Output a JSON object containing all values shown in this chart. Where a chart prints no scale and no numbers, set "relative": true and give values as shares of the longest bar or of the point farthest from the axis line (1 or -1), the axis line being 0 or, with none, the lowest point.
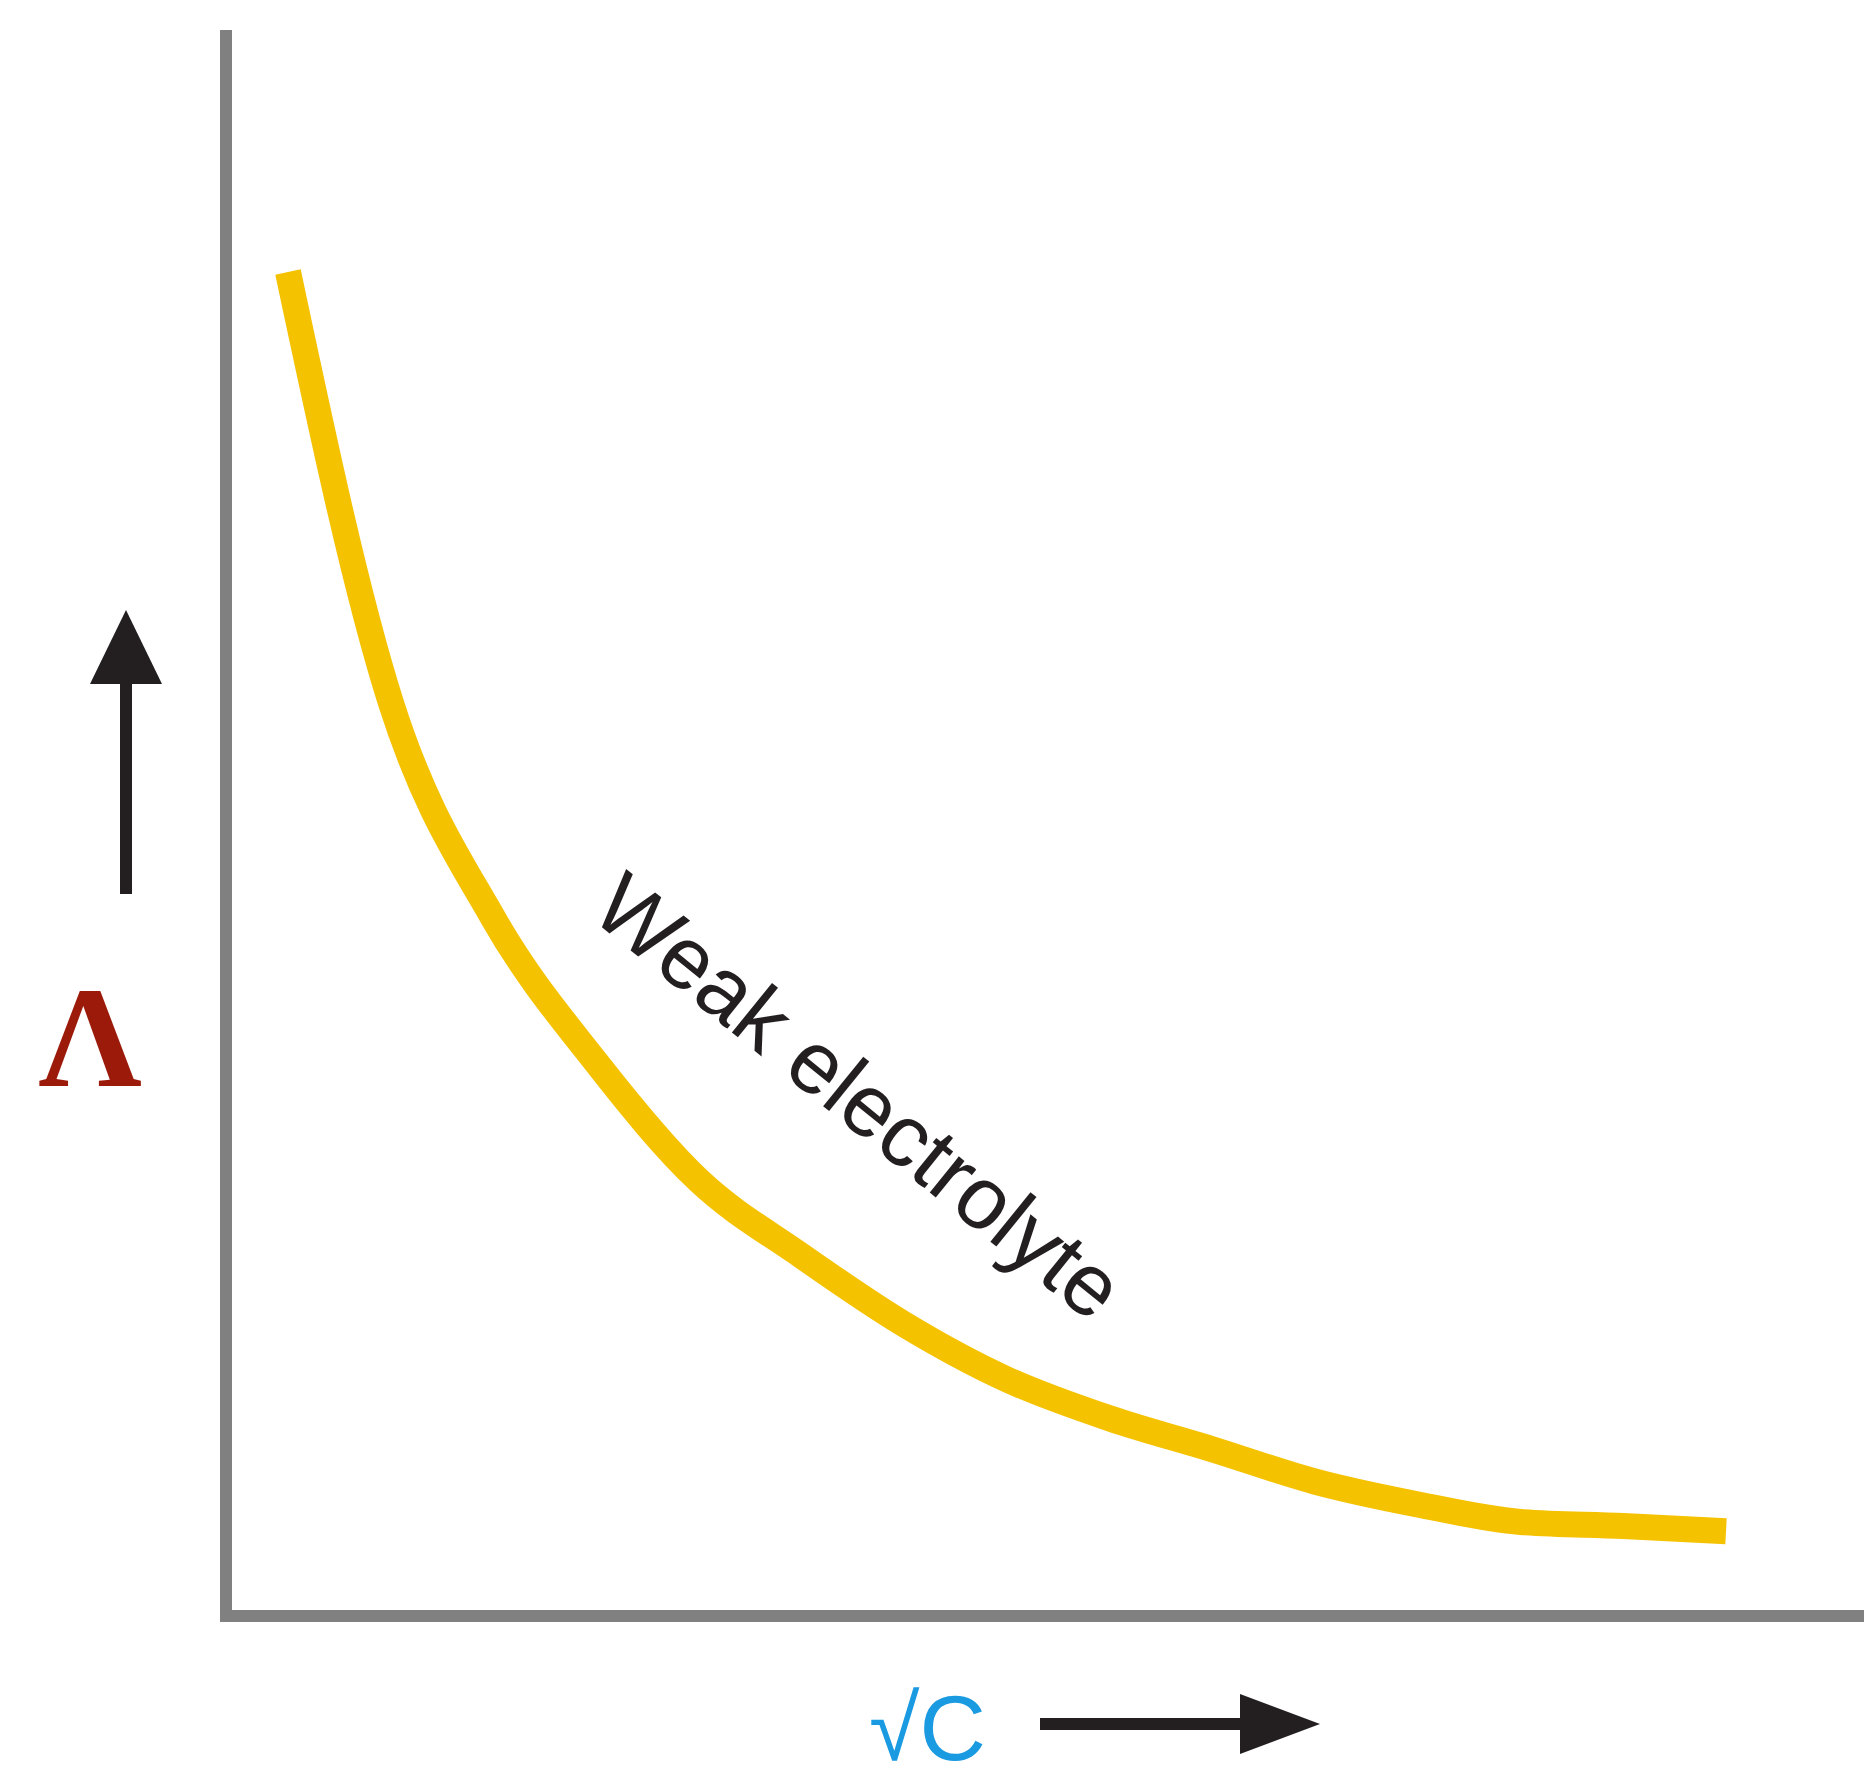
{
  "chart_data": {
    "type": "line",
    "relative": true,
    "xlabel": "√C",
    "ylabel": "Λ",
    "categories": [
      null,
      null,
      null,
      null,
      null,
      null,
      null,
      null,
      null,
      null,
      null,
      null,
      null,
      null,
      null
    ],
    "series": [
      {
        "color": "#f5c200",
        "values": [
          1,
          0.68,
          0.519,
          0.412,
          0.324,
          0.268,
          0.217,
          0.176,
          0.147,
          0.124,
          0.1,
          0.083,
          0.07,
          0.067,
          0.063
        ]
      }
    ],
    "annotations": [
      "Weak electrolyte"
    ],
    "marker": "none",
    "line_style": "solid"
  }
}
